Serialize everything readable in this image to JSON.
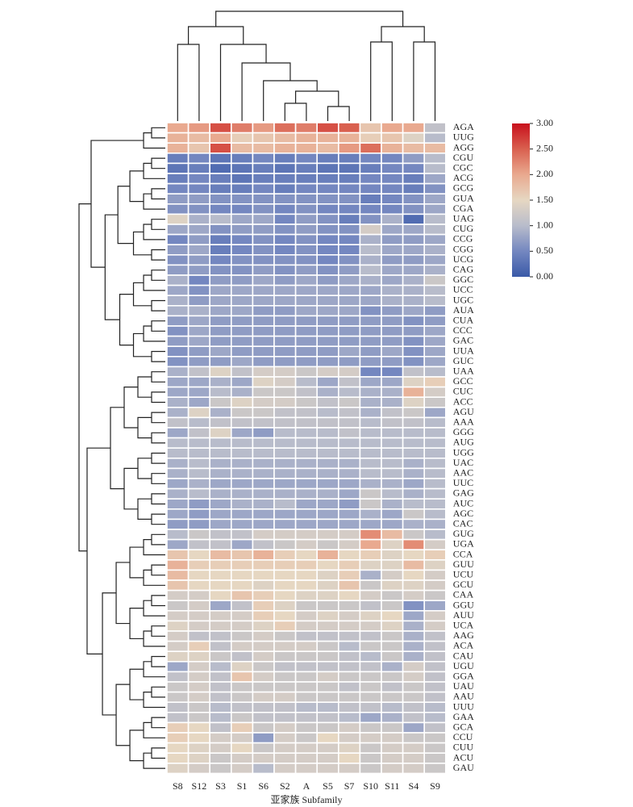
{
  "chart_data": {
    "type": "heatmap",
    "xlabel": "亚家族 Subfamily",
    "x_categories": [
      "S8",
      "S12",
      "S3",
      "S1",
      "S6",
      "S2",
      "A",
      "S5",
      "S7",
      "S10",
      "S11",
      "S4",
      "S9"
    ],
    "y_categories": [
      "AGA",
      "UUG",
      "AGG",
      "CGU",
      "CGC",
      "ACG",
      "GCG",
      "GUA",
      "CGA",
      "UAG",
      "CUG",
      "CCG",
      "CGG",
      "UCG",
      "CAG",
      "GGC",
      "UCC",
      "UGC",
      "AUA",
      "CUA",
      "CCC",
      "GAC",
      "UUA",
      "GUC",
      "UAA",
      "GCC",
      "CUC",
      "ACC",
      "AGU",
      "AAA",
      "GGG",
      "AUG",
      "UGG",
      "UAC",
      "AAC",
      "UUC",
      "GAG",
      "AUC",
      "AGC",
      "CAC",
      "GUG",
      "UGA",
      "CCA",
      "GUU",
      "UCU",
      "GCU",
      "CAA",
      "GGU",
      "AUU",
      "UCA",
      "AAG",
      "ACA",
      "CAU",
      "UGU",
      "GGA",
      "UAU",
      "AAU",
      "UUU",
      "GAA",
      "GCA",
      "CCU",
      "CUU",
      "ACU",
      "GAU"
    ],
    "values": [
      [
        2.0,
        2.1,
        2.6,
        2.3,
        2.1,
        2.4,
        2.3,
        2.6,
        2.5,
        1.7,
        2.0,
        2.0,
        1.1
      ],
      [
        1.9,
        1.8,
        2.0,
        1.6,
        1.7,
        1.8,
        1.9,
        1.9,
        1.9,
        1.6,
        1.7,
        1.4,
        1.0
      ],
      [
        1.9,
        1.7,
        2.6,
        1.8,
        1.8,
        1.9,
        1.9,
        1.8,
        2.1,
        2.4,
        1.9,
        1.8,
        1.8
      ],
      [
        0.4,
        0.5,
        0.3,
        0.4,
        0.5,
        0.4,
        0.5,
        0.4,
        0.4,
        0.5,
        0.5,
        0.7,
        1.0
      ],
      [
        0.3,
        0.4,
        0.2,
        0.3,
        0.4,
        0.3,
        0.4,
        0.3,
        0.3,
        0.4,
        0.5,
        0.5,
        1.0
      ],
      [
        0.4,
        0.5,
        0.4,
        0.3,
        0.4,
        0.4,
        0.4,
        0.4,
        0.4,
        0.5,
        0.5,
        0.4,
        0.8
      ],
      [
        0.5,
        0.5,
        0.4,
        0.4,
        0.5,
        0.4,
        0.5,
        0.5,
        0.5,
        0.5,
        0.5,
        0.4,
        0.6
      ],
      [
        0.7,
        0.7,
        0.6,
        0.6,
        0.6,
        0.6,
        0.6,
        0.6,
        0.6,
        0.4,
        0.5,
        0.6,
        0.8
      ],
      [
        0.6,
        0.6,
        0.5,
        0.5,
        0.6,
        0.5,
        0.6,
        0.5,
        0.5,
        0.5,
        0.5,
        0.6,
        0.8
      ],
      [
        1.4,
        0.9,
        1.0,
        0.8,
        0.8,
        0.5,
        0.7,
        0.6,
        0.4,
        0.6,
        0.9,
        0.2,
        1.0
      ],
      [
        0.8,
        0.8,
        0.6,
        0.7,
        0.7,
        0.6,
        0.7,
        0.6,
        0.6,
        1.3,
        0.8,
        0.8,
        1.0
      ],
      [
        0.5,
        0.7,
        0.4,
        0.5,
        0.6,
        0.5,
        0.6,
        0.5,
        0.5,
        0.9,
        0.7,
        0.7,
        0.8
      ],
      [
        0.7,
        0.8,
        0.4,
        0.5,
        0.6,
        0.5,
        0.6,
        0.5,
        0.5,
        1.0,
        0.8,
        0.8,
        0.9
      ],
      [
        0.6,
        0.7,
        0.5,
        0.6,
        0.6,
        0.6,
        0.6,
        0.5,
        0.6,
        0.9,
        0.7,
        0.7,
        0.8
      ],
      [
        0.7,
        0.7,
        0.6,
        0.6,
        0.7,
        0.6,
        0.7,
        0.6,
        0.7,
        1.0,
        0.8,
        0.8,
        0.9
      ],
      [
        0.9,
        0.5,
        0.7,
        0.7,
        0.8,
        0.7,
        0.8,
        0.7,
        0.8,
        0.9,
        0.8,
        0.9,
        1.2
      ],
      [
        0.8,
        0.6,
        0.8,
        0.8,
        0.8,
        0.8,
        0.8,
        0.8,
        0.8,
        0.8,
        0.9,
        0.9,
        1.0
      ],
      [
        0.9,
        0.7,
        0.8,
        0.8,
        0.8,
        0.8,
        0.8,
        0.8,
        0.8,
        0.8,
        0.9,
        0.9,
        1.0
      ],
      [
        0.9,
        0.9,
        0.8,
        0.8,
        0.7,
        0.7,
        0.8,
        0.8,
        0.8,
        0.6,
        0.7,
        0.8,
        0.7
      ],
      [
        0.7,
        0.8,
        0.7,
        0.7,
        0.7,
        0.7,
        0.7,
        0.7,
        0.7,
        0.7,
        0.7,
        0.6,
        0.7
      ],
      [
        0.6,
        0.8,
        0.7,
        0.7,
        0.7,
        0.7,
        0.7,
        0.7,
        0.7,
        0.7,
        0.7,
        0.7,
        0.8
      ],
      [
        0.7,
        0.8,
        0.7,
        0.7,
        0.7,
        0.7,
        0.7,
        0.7,
        0.7,
        0.7,
        0.7,
        0.6,
        0.8
      ],
      [
        0.6,
        0.7,
        0.8,
        0.7,
        0.7,
        0.7,
        0.7,
        0.7,
        0.8,
        0.7,
        0.8,
        0.6,
        0.8
      ],
      [
        0.6,
        0.7,
        0.7,
        0.8,
        0.7,
        0.7,
        0.7,
        0.7,
        0.7,
        0.7,
        0.7,
        0.6,
        0.8
      ],
      [
        0.9,
        1.1,
        1.4,
        1.1,
        1.3,
        1.3,
        1.2,
        1.3,
        1.3,
        0.5,
        0.5,
        1.1,
        1.0
      ],
      [
        0.8,
        0.8,
        0.9,
        0.8,
        1.4,
        1.3,
        1.0,
        0.8,
        1.1,
        0.8,
        0.8,
        1.4,
        1.6
      ],
      [
        0.8,
        0.8,
        1.0,
        0.9,
        1.2,
        1.2,
        1.1,
        0.9,
        1.0,
        0.9,
        0.9,
        1.9,
        1.3
      ],
      [
        0.9,
        0.8,
        1.2,
        1.4,
        1.3,
        1.3,
        1.2,
        1.1,
        1.2,
        0.9,
        0.9,
        1.4,
        1.2
      ],
      [
        0.9,
        1.4,
        0.9,
        1.2,
        1.2,
        1.1,
        1.1,
        1.0,
        1.1,
        0.9,
        1.1,
        1.2,
        0.8
      ],
      [
        1.1,
        1.0,
        1.1,
        1.1,
        1.1,
        1.1,
        1.1,
        1.1,
        1.1,
        1.0,
        1.1,
        1.1,
        1.0
      ],
      [
        0.8,
        1.1,
        1.4,
        0.8,
        0.7,
        1.0,
        1.0,
        1.0,
        1.1,
        1.0,
        1.0,
        1.0,
        1.0
      ],
      [
        1.0,
        1.0,
        1.0,
        1.0,
        1.0,
        1.0,
        1.0,
        1.0,
        1.0,
        1.0,
        1.0,
        1.0,
        1.0
      ],
      [
        1.0,
        1.0,
        1.0,
        1.0,
        1.0,
        1.0,
        1.0,
        1.0,
        1.0,
        1.0,
        1.0,
        1.0,
        1.0
      ],
      [
        0.9,
        1.0,
        0.9,
        0.9,
        0.9,
        0.9,
        0.9,
        0.9,
        0.9,
        1.0,
        1.0,
        0.9,
        1.0
      ],
      [
        0.9,
        1.0,
        0.9,
        0.9,
        0.9,
        0.9,
        0.9,
        0.9,
        0.9,
        1.0,
        1.0,
        0.9,
        1.0
      ],
      [
        0.8,
        0.9,
        0.8,
        0.8,
        0.8,
        0.8,
        0.8,
        0.8,
        0.8,
        0.9,
        0.9,
        0.8,
        1.0
      ],
      [
        0.9,
        1.0,
        0.9,
        0.9,
        0.9,
        0.9,
        0.9,
        0.9,
        0.8,
        1.2,
        1.0,
        0.9,
        1.0
      ],
      [
        0.8,
        0.7,
        0.8,
        0.9,
        0.9,
        1.0,
        0.8,
        0.8,
        0.7,
        1.2,
        0.9,
        1.0,
        1.0
      ],
      [
        0.8,
        0.7,
        0.8,
        0.8,
        0.8,
        0.8,
        0.8,
        0.8,
        0.8,
        0.9,
        0.8,
        1.2,
        1.0
      ],
      [
        0.7,
        0.7,
        0.8,
        0.8,
        0.8,
        0.8,
        0.8,
        0.8,
        0.8,
        0.8,
        0.8,
        0.9,
        0.9
      ],
      [
        1.0,
        1.2,
        1.1,
        1.1,
        1.3,
        1.3,
        1.3,
        1.3,
        1.3,
        2.2,
        1.8,
        1.2,
        1.0
      ],
      [
        0.8,
        1.1,
        1.1,
        0.8,
        1.1,
        1.2,
        1.3,
        1.2,
        1.3,
        2.0,
        1.4,
        2.2,
        1.3
      ],
      [
        1.7,
        1.5,
        1.8,
        1.7,
        1.9,
        1.6,
        1.5,
        1.9,
        1.5,
        1.6,
        1.4,
        1.5,
        1.6
      ],
      [
        1.9,
        1.6,
        1.6,
        1.6,
        1.6,
        1.6,
        1.6,
        1.5,
        1.6,
        1.4,
        1.4,
        1.8,
        1.4
      ],
      [
        1.8,
        1.5,
        1.5,
        1.5,
        1.5,
        1.5,
        1.5,
        1.4,
        1.6,
        0.9,
        1.3,
        1.5,
        1.3
      ],
      [
        1.7,
        1.5,
        1.5,
        1.5,
        1.4,
        1.5,
        1.5,
        1.4,
        1.7,
        1.2,
        1.4,
        1.4,
        1.3
      ],
      [
        1.3,
        1.3,
        1.5,
        1.7,
        1.6,
        1.5,
        1.4,
        1.4,
        1.5,
        1.3,
        1.2,
        1.3,
        1.2
      ],
      [
        1.2,
        1.3,
        0.8,
        1.1,
        1.6,
        1.4,
        1.2,
        1.2,
        1.2,
        1.1,
        1.2,
        0.6,
        0.8
      ],
      [
        1.3,
        1.3,
        1.3,
        1.3,
        1.6,
        1.5,
        1.3,
        1.4,
        1.3,
        1.4,
        1.5,
        0.8,
        1.3
      ],
      [
        1.4,
        1.3,
        1.3,
        1.3,
        1.4,
        1.6,
        1.3,
        1.3,
        1.3,
        1.3,
        1.4,
        0.9,
        1.3
      ],
      [
        1.3,
        1.1,
        1.1,
        1.2,
        1.3,
        1.2,
        1.1,
        1.1,
        1.1,
        1.1,
        1.2,
        0.9,
        1.1
      ],
      [
        1.3,
        1.6,
        1.1,
        1.3,
        1.3,
        1.3,
        1.3,
        1.2,
        1.0,
        1.2,
        1.2,
        0.9,
        1.1
      ],
      [
        1.4,
        1.4,
        1.2,
        1.1,
        1.3,
        1.2,
        1.2,
        1.2,
        1.1,
        1.0,
        1.2,
        0.9,
        1.1
      ],
      [
        0.8,
        1.3,
        1.0,
        1.4,
        1.2,
        1.1,
        1.1,
        1.1,
        1.1,
        1.1,
        0.9,
        1.3,
        1.1
      ],
      [
        1.1,
        1.3,
        1.1,
        1.7,
        1.3,
        1.2,
        1.2,
        1.3,
        1.2,
        1.2,
        1.2,
        1.3,
        1.1
      ],
      [
        1.2,
        1.3,
        1.1,
        1.2,
        1.2,
        1.2,
        1.2,
        1.2,
        1.1,
        1.2,
        1.1,
        1.2,
        1.1
      ],
      [
        1.2,
        1.3,
        1.1,
        1.2,
        1.3,
        1.3,
        1.2,
        1.2,
        1.2,
        1.2,
        1.2,
        1.2,
        1.1
      ],
      [
        1.1,
        1.2,
        1.0,
        1.1,
        1.1,
        1.1,
        1.0,
        1.0,
        1.1,
        1.1,
        1.0,
        1.1,
        1.0
      ],
      [
        1.1,
        1.2,
        1.0,
        1.2,
        1.1,
        1.1,
        1.1,
        1.1,
        1.0,
        0.8,
        0.9,
        1.1,
        1.0
      ],
      [
        1.6,
        1.5,
        1.1,
        1.6,
        1.2,
        1.3,
        1.2,
        1.2,
        1.3,
        1.2,
        1.2,
        0.8,
        1.1
      ],
      [
        1.6,
        1.5,
        1.3,
        1.3,
        0.7,
        1.3,
        1.2,
        1.5,
        1.3,
        1.3,
        1.3,
        1.2,
        1.2
      ],
      [
        1.5,
        1.4,
        1.3,
        1.5,
        1.2,
        1.3,
        1.3,
        1.3,
        1.4,
        1.2,
        1.3,
        1.3,
        1.2
      ],
      [
        1.5,
        1.4,
        1.2,
        1.3,
        1.3,
        1.3,
        1.3,
        1.3,
        1.5,
        1.2,
        1.3,
        1.3,
        1.2
      ],
      [
        1.4,
        1.3,
        1.2,
        1.3,
        1.0,
        1.3,
        1.3,
        1.3,
        1.3,
        1.2,
        1.3,
        1.3,
        1.2
      ]
    ],
    "clim": [
      0,
      3
    ],
    "cticks": [
      {
        "value": 0,
        "label": "0.00"
      },
      {
        "value": 0.5,
        "label": "0.50"
      },
      {
        "value": 1,
        "label": "1.00"
      },
      {
        "value": 1.5,
        "label": "1.50"
      },
      {
        "value": 2,
        "label": "2.00"
      },
      {
        "value": 2.5,
        "label": "2.50"
      },
      {
        "value": 3,
        "label": "3.00"
      }
    ],
    "colormap": [
      "#3a5aa8",
      "#7487c0",
      "#b8bccb",
      "#e6d7c2",
      "#e9a98f",
      "#d9604f",
      "#c8101c"
    ]
  }
}
